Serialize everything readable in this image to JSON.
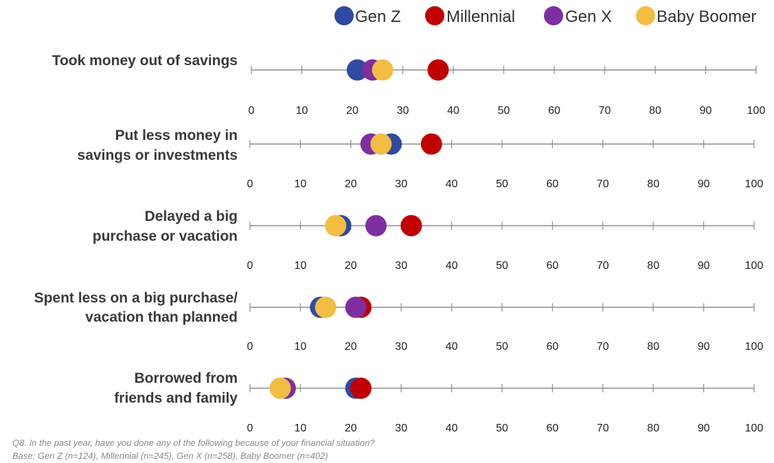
{
  "chart_data": {
    "type": "scatter",
    "xlim": [
      0,
      100
    ],
    "ticks": [
      0,
      10,
      20,
      30,
      40,
      50,
      60,
      70,
      80,
      90,
      100
    ],
    "legend_position": "top-right",
    "series": [
      {
        "name": "Gen Z",
        "color": "#2f4aa0"
      },
      {
        "name": "Millennial",
        "color": "#c00000"
      },
      {
        "name": "Gen X",
        "color": "#7e2ea0"
      },
      {
        "name": "Baby Boomer",
        "color": "#f2bd42"
      }
    ],
    "categories": [
      {
        "label_lines": [
          "Took money out of savings"
        ],
        "values": {
          "Gen Z": 21,
          "Millennial": 37,
          "Gen X": 24,
          "Baby Boomer": 26
        }
      },
      {
        "label_lines": [
          "Put less money in",
          "savings or investments"
        ],
        "values": {
          "Gen Z": 28,
          "Millennial": 36,
          "Gen X": 24,
          "Baby Boomer": 26
        }
      },
      {
        "label_lines": [
          "Delayed a big",
          "purchase or vacation"
        ],
        "values": {
          "Gen Z": 18,
          "Millennial": 32,
          "Gen X": 25,
          "Baby Boomer": 17
        }
      },
      {
        "label_lines": [
          "Spent less on a big purchase/",
          "vacation than planned"
        ],
        "values": {
          "Gen Z": 14,
          "Millennial": 22,
          "Gen X": 21,
          "Baby Boomer": 15
        }
      },
      {
        "label_lines": [
          "Borrowed from",
          "friends and family"
        ],
        "values": {
          "Gen Z": 21,
          "Millennial": 22,
          "Gen X": 7,
          "Baby Boomer": 6
        }
      }
    ],
    "draw_order": [
      "Gen Z",
      "Millennial",
      "Gen X",
      "Baby Boomer"
    ]
  },
  "footnote": {
    "question": "Q8. In the past year, have you done any of the following because of your financial situation?",
    "base": "Base: Gen Z (n=124), Millennial (n=245), Gen X (n=258), Baby Boomer (n=402)"
  }
}
